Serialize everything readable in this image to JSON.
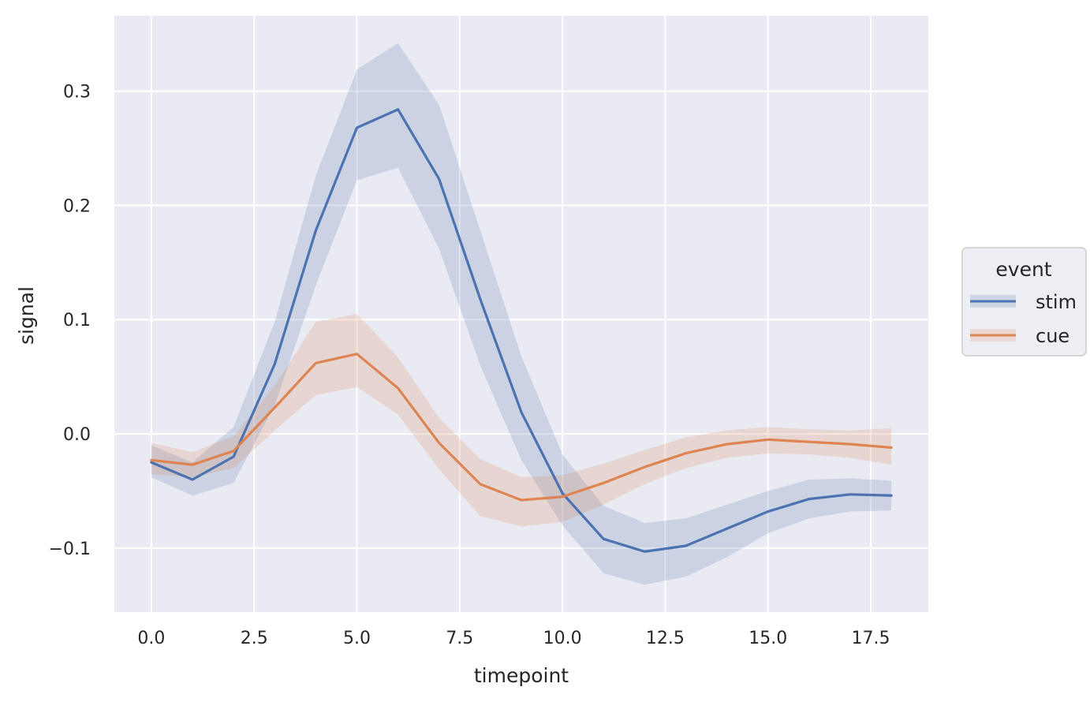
{
  "chart_data": {
    "type": "line",
    "xlabel": "timepoint",
    "ylabel": "signal",
    "xlim": [
      -0.9,
      18.9
    ],
    "ylim": [
      -0.156,
      0.366
    ],
    "xticks": [
      0.0,
      2.5,
      5.0,
      7.5,
      10.0,
      12.5,
      15.0,
      17.5
    ],
    "xtick_labels": [
      "0.0",
      "2.5",
      "5.0",
      "7.5",
      "10.0",
      "12.5",
      "15.0",
      "17.5"
    ],
    "yticks": [
      -0.1,
      0.0,
      0.1,
      0.2,
      0.3
    ],
    "ytick_labels": [
      "−0.1",
      "0.0",
      "0.1",
      "0.2",
      "0.3"
    ],
    "grid": true,
    "legend": {
      "title": "event",
      "placement": "right"
    },
    "x": [
      0,
      1,
      2,
      3,
      4,
      5,
      6,
      7,
      8,
      9,
      10,
      11,
      12,
      13,
      14,
      15,
      16,
      17,
      18
    ],
    "series": [
      {
        "name": "stim",
        "color": "#4c72b0",
        "values": [
          -0.025,
          -0.04,
          -0.02,
          0.061,
          0.178,
          0.268,
          0.284,
          0.223,
          0.118,
          0.019,
          -0.052,
          -0.092,
          -0.103,
          -0.098,
          -0.083,
          -0.068,
          -0.057,
          -0.053,
          -0.054
        ],
        "ci_low": [
          -0.038,
          -0.054,
          -0.043,
          0.025,
          0.13,
          0.222,
          0.233,
          0.162,
          0.06,
          -0.023,
          -0.08,
          -0.122,
          -0.132,
          -0.125,
          -0.108,
          -0.087,
          -0.074,
          -0.068,
          -0.067
        ],
        "ci_high": [
          -0.01,
          -0.025,
          0.006,
          0.098,
          0.226,
          0.319,
          0.342,
          0.288,
          0.178,
          0.068,
          -0.018,
          -0.063,
          -0.078,
          -0.074,
          -0.062,
          -0.05,
          -0.04,
          -0.039,
          -0.041
        ]
      },
      {
        "name": "cue",
        "color": "#dd8452",
        "values": [
          -0.023,
          -0.027,
          -0.015,
          0.023,
          0.062,
          0.07,
          0.04,
          -0.008,
          -0.044,
          -0.058,
          -0.055,
          -0.043,
          -0.029,
          -0.017,
          -0.009,
          -0.005,
          -0.007,
          -0.009,
          -0.012
        ],
        "ci_low": [
          -0.035,
          -0.038,
          -0.03,
          0.003,
          0.034,
          0.041,
          0.017,
          -0.031,
          -0.072,
          -0.081,
          -0.077,
          -0.062,
          -0.044,
          -0.03,
          -0.021,
          -0.017,
          -0.018,
          -0.021,
          -0.027
        ],
        "ci_high": [
          -0.008,
          -0.016,
          -0.002,
          0.042,
          0.098,
          0.105,
          0.067,
          0.014,
          -0.022,
          -0.038,
          -0.036,
          -0.026,
          -0.014,
          -0.003,
          0.003,
          0.006,
          0.004,
          0.003,
          0.005
        ]
      }
    ]
  }
}
